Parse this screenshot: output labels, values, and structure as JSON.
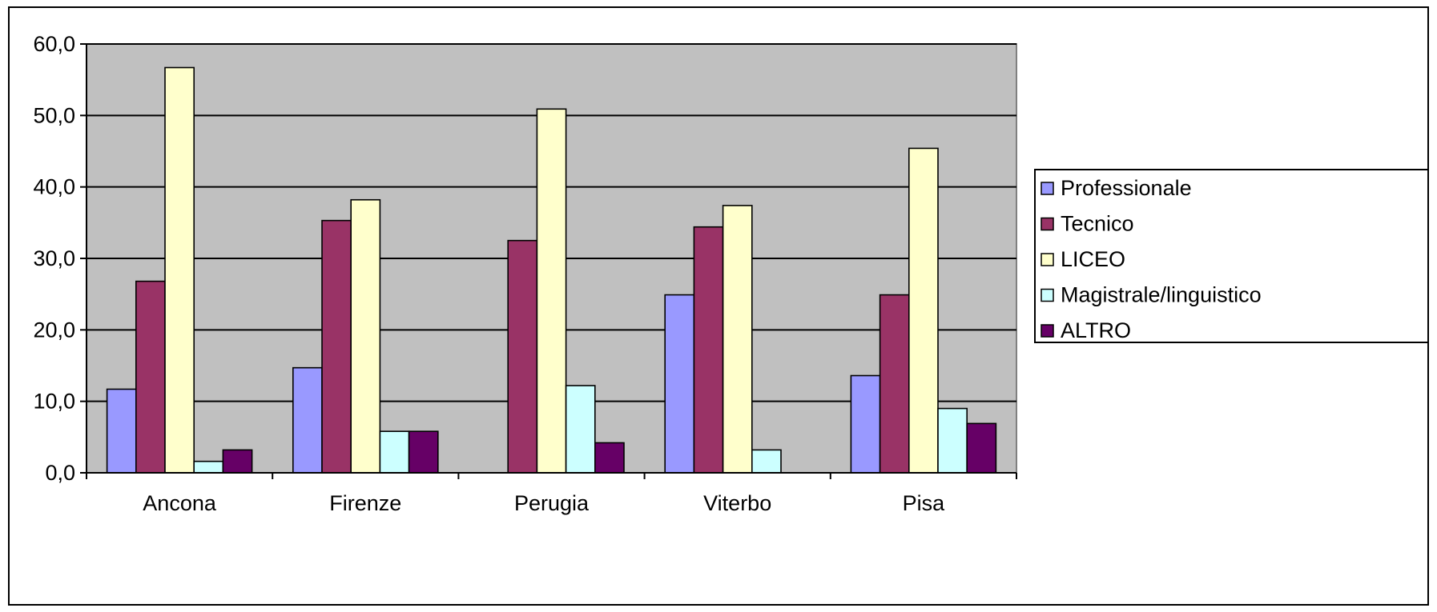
{
  "chart_data": {
    "type": "bar",
    "title": "",
    "xlabel": "",
    "ylabel": "",
    "categories": [
      "Ancona",
      "Firenze",
      "Perugia",
      "Viterbo",
      "Pisa"
    ],
    "ylim": [
      0,
      60
    ],
    "yticks": [
      0,
      10,
      20,
      30,
      40,
      50,
      60
    ],
    "ytick_labels": [
      "0,0",
      "10,0",
      "20,0",
      "30,0",
      "40,0",
      "50,0",
      "60,0"
    ],
    "grid": true,
    "plot_background": "#c0c0c0",
    "legend_position": "right",
    "series": [
      {
        "name": "Professionale",
        "color": "#9999ff",
        "values": [
          11.7,
          14.7,
          0,
          24.9,
          13.6
        ]
      },
      {
        "name": "Tecnico",
        "color": "#993366",
        "values": [
          26.8,
          35.3,
          32.5,
          34.4,
          24.9
        ]
      },
      {
        "name": "LICEO",
        "color": "#ffffcc",
        "values": [
          56.7,
          38.2,
          50.9,
          37.4,
          45.4
        ]
      },
      {
        "name": "Magistrale/linguistico",
        "color": "#ccffff",
        "values": [
          1.6,
          5.8,
          12.2,
          3.2,
          9.0
        ]
      },
      {
        "name": "ALTRO",
        "color": "#660066",
        "values": [
          3.2,
          5.8,
          4.2,
          0,
          6.9
        ]
      }
    ]
  }
}
